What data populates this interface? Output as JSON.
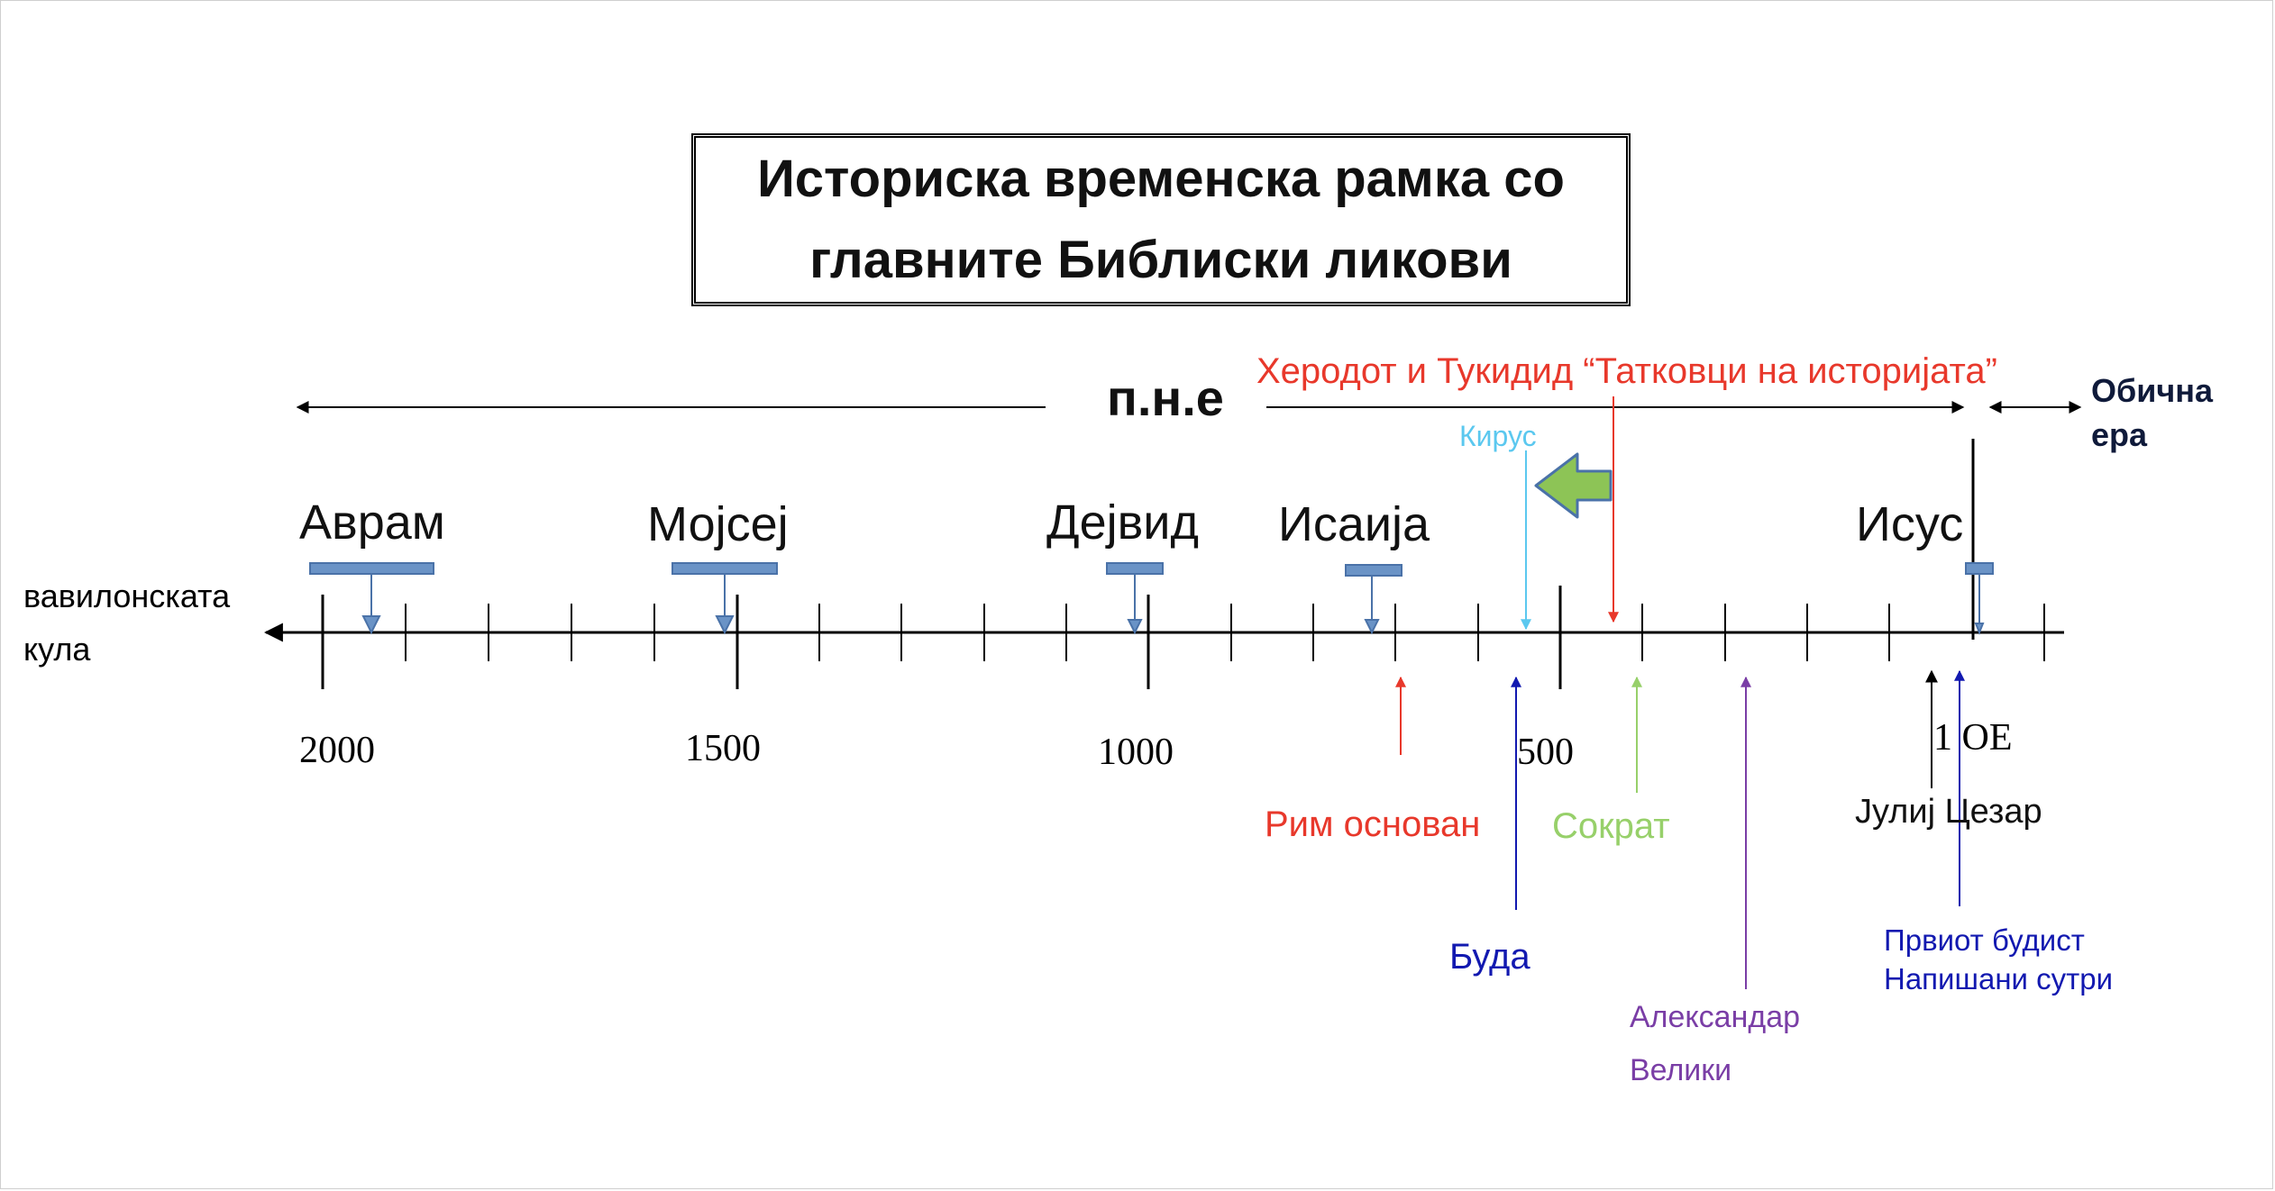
{
  "title": {
    "line1": "Историска временска рамка со",
    "line2": "главните Библиски ликови"
  },
  "era": {
    "bce_label": "п.н.е",
    "ce_label_line1": "Обична",
    "ce_label_line2": "ера"
  },
  "axis": {
    "left_label_line1": "вавилонската",
    "left_label_line2": "кула",
    "ticks": [
      "2000",
      "1500",
      "1000",
      "500",
      "1 ОЕ"
    ]
  },
  "figures": {
    "abraham": "Аврам",
    "moses": "Мојсеј",
    "david": "Дејвид",
    "isaiah": "Исаија",
    "jesus": "Исус"
  },
  "events": {
    "herodotus": "Херодот и Тукидид “Татковци на историјата”",
    "cyrus": "Кирус",
    "rome": "Рим основан",
    "buddha": "Буда",
    "socrates": "Сократ",
    "alexander_line1": "Александар",
    "alexander_line2": "Велики",
    "julius_caesar": "Јулиј Цезар",
    "sutras_line1": "Првиот будист",
    "sutras_line2": "Напишани сутри"
  },
  "colors": {
    "red": "#e8382b",
    "light_blue": "#5bc8ef",
    "navy": "#1219b0",
    "light_green": "#97d06a",
    "purple": "#7a3ea6",
    "figure_marker": "#6a93c6",
    "big_arrow": "#8dc456"
  }
}
